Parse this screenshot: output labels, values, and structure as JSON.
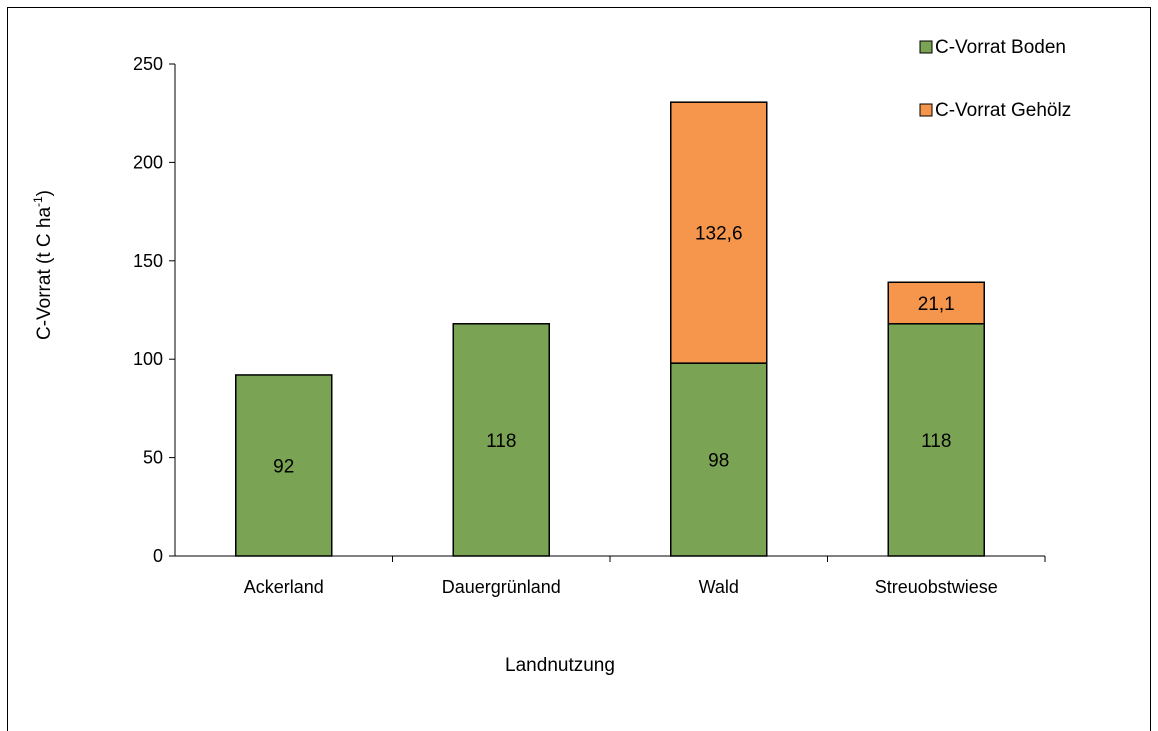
{
  "chart_data": {
    "type": "bar",
    "stacked": true,
    "categories": [
      "Ackerland",
      "Dauergrünland",
      "Wald",
      "Streuobstwiese"
    ],
    "series": [
      {
        "name": "C-Vorrat Boden",
        "values": [
          92,
          118,
          98,
          118
        ],
        "labels": [
          "92",
          "118",
          "98",
          "118"
        ],
        "color": "#7aa454"
      },
      {
        "name": "C-Vorrat Gehölz",
        "values": [
          null,
          null,
          132.6,
          21.1
        ],
        "labels": [
          "",
          "",
          "132,6",
          "21,1"
        ],
        "color": "#f5964c"
      }
    ],
    "xlabel": "Landnutzung",
    "ylabel": "C-Vorrat (t C ha",
    "ylabel_superscript": "-1",
    "ylabel_suffix": ")",
    "ylim": [
      0,
      250
    ],
    "yticks": [
      0,
      50,
      100,
      150,
      200,
      250
    ],
    "grid": false,
    "legend_position": "top-right"
  }
}
